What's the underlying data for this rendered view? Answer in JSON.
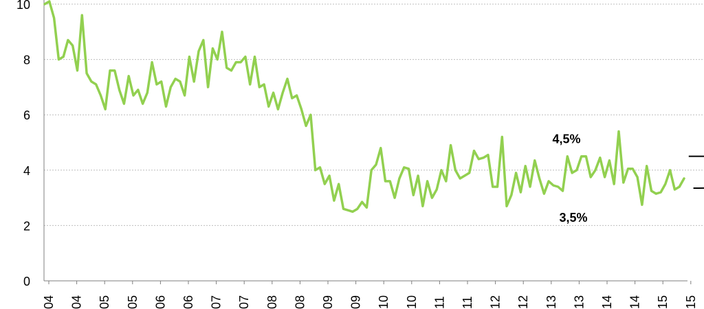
{
  "chart_data": {
    "type": "line",
    "title": "",
    "xlabel": "",
    "ylabel": "",
    "ylim": [
      0,
      10
    ],
    "y_ticks": [
      "0",
      "2",
      "4",
      "6",
      "8",
      "10"
    ],
    "x_ticks": [
      "04",
      "04",
      "05",
      "05",
      "06",
      "06",
      "07",
      "07",
      "08",
      "08",
      "09",
      "09",
      "10",
      "10",
      "11",
      "11",
      "12",
      "12",
      "13",
      "13",
      "14",
      "14",
      "15",
      "15"
    ],
    "grid": "horizontal",
    "series": [
      {
        "name": "",
        "color": "#92d050",
        "values": [
          10.0,
          10.1,
          9.5,
          8.0,
          8.1,
          8.7,
          8.5,
          7.6,
          9.6,
          7.5,
          7.2,
          7.1,
          6.7,
          6.2,
          7.6,
          7.6,
          6.9,
          6.4,
          7.4,
          6.7,
          6.9,
          6.4,
          6.8,
          7.9,
          7.1,
          7.2,
          6.3,
          7.0,
          7.3,
          7.2,
          6.7,
          8.1,
          7.2,
          8.3,
          8.7,
          7.0,
          8.4,
          8.0,
          9.0,
          7.7,
          7.6,
          7.9,
          7.9,
          8.1,
          7.1,
          8.1,
          7.0,
          7.1,
          6.3,
          6.8,
          6.2,
          6.8,
          7.3,
          6.6,
          6.7,
          6.2,
          5.6,
          6.0,
          4.0,
          4.1,
          3.5,
          3.8,
          2.9,
          3.5,
          2.6,
          2.55,
          2.5,
          2.6,
          2.85,
          2.65,
          4.0,
          4.2,
          4.8,
          3.6,
          3.6,
          3.0,
          3.7,
          4.1,
          4.05,
          3.1,
          3.8,
          2.7,
          3.6,
          3.0,
          3.3,
          4.0,
          3.6,
          4.9,
          4.0,
          3.7,
          3.8,
          3.9,
          4.7,
          4.4,
          4.45,
          4.55,
          3.4,
          3.4,
          5.2,
          2.7,
          3.1,
          3.9,
          3.2,
          4.15,
          3.4,
          4.35,
          3.7,
          3.15,
          3.6,
          3.45,
          3.4,
          3.25,
          4.5,
          3.9,
          4.0,
          4.5,
          4.5,
          3.75,
          4.0,
          4.45,
          3.75,
          4.35,
          3.5,
          5.4,
          3.55,
          4.05,
          4.05,
          3.75,
          2.75,
          4.15,
          3.25,
          3.15,
          3.2,
          3.5,
          4.0,
          3.3,
          3.4,
          3.7
        ]
      }
    ],
    "reference_lines": [
      {
        "label": "4,5%",
        "value": 4.5,
        "x_start": 138,
        "x_end": 233
      },
      {
        "label": "3,5%",
        "value": 3.45,
        "value_end": 3.45,
        "value_start": 3.35,
        "x_start": 139,
        "x_end": 233
      }
    ]
  }
}
